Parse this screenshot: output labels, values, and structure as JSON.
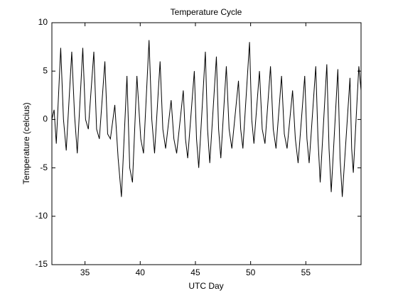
{
  "chart_data": {
    "type": "line",
    "title": "Temperature Cycle",
    "x_label": "UTC Day",
    "y_label": "Temperature (celcius)",
    "x": [
      32.0,
      32.2,
      32.4,
      32.8,
      33.05,
      33.3,
      33.8,
      34.05,
      34.3,
      34.8,
      35.05,
      35.3,
      35.8,
      36.05,
      36.3,
      36.8,
      37.05,
      37.3,
      37.7,
      38.0,
      38.3,
      38.8,
      39.05,
      39.3,
      39.7,
      40.05,
      40.3,
      40.8,
      41.05,
      41.3,
      41.8,
      42.05,
      42.3,
      42.8,
      43.05,
      43.3,
      43.9,
      44.1,
      44.3,
      44.9,
      45.1,
      45.3,
      45.9,
      46.1,
      46.3,
      46.9,
      47.1,
      47.3,
      47.8,
      48.05,
      48.3,
      48.9,
      49.1,
      49.3,
      49.9,
      50.1,
      50.3,
      50.8,
      51.05,
      51.3,
      51.8,
      52.05,
      52.3,
      52.8,
      53.05,
      53.3,
      53.8,
      54.05,
      54.3,
      54.9,
      55.1,
      55.3,
      55.9,
      56.1,
      56.3,
      56.9,
      57.1,
      57.3,
      57.9,
      58.1,
      58.3,
      59.0,
      59.15,
      59.3,
      59.8,
      60.0
    ],
    "series": [
      {
        "color": "#000000",
        "values": [
          0,
          1,
          -2.5,
          7.4,
          0,
          -3.2,
          7,
          0.5,
          -3.5,
          7.4,
          0,
          -1,
          7,
          -1,
          -2,
          6,
          -1.5,
          -2,
          1.5,
          -4,
          -8,
          4.5,
          -5,
          -6.5,
          4.5,
          -2,
          -3.5,
          8.2,
          0,
          -3.5,
          6,
          -1,
          -3,
          2,
          -2,
          -3.5,
          3,
          -2,
          -4,
          5,
          -2,
          -5,
          7,
          -1,
          -4.5,
          6.5,
          -1,
          -4,
          5.5,
          -1,
          -3,
          4,
          -1,
          -3,
          8,
          0,
          -2.5,
          5,
          -1,
          -2.5,
          5.5,
          -1,
          -3,
          4.5,
          -1.5,
          -3,
          3,
          -2,
          -4.5,
          4.5,
          -2,
          -4.5,
          5.5,
          -2,
          -6.5,
          5.7,
          -3,
          -7.5,
          5.2,
          -4,
          -8,
          4.3,
          -3,
          -5.5,
          5.5,
          3
        ]
      }
    ],
    "xlim": [
      32,
      60
    ],
    "ylim": [
      -15,
      10
    ],
    "xticks": [
      35,
      40,
      45,
      50,
      55
    ],
    "yticks": [
      -15,
      -10,
      -5,
      0,
      5,
      10
    ]
  }
}
